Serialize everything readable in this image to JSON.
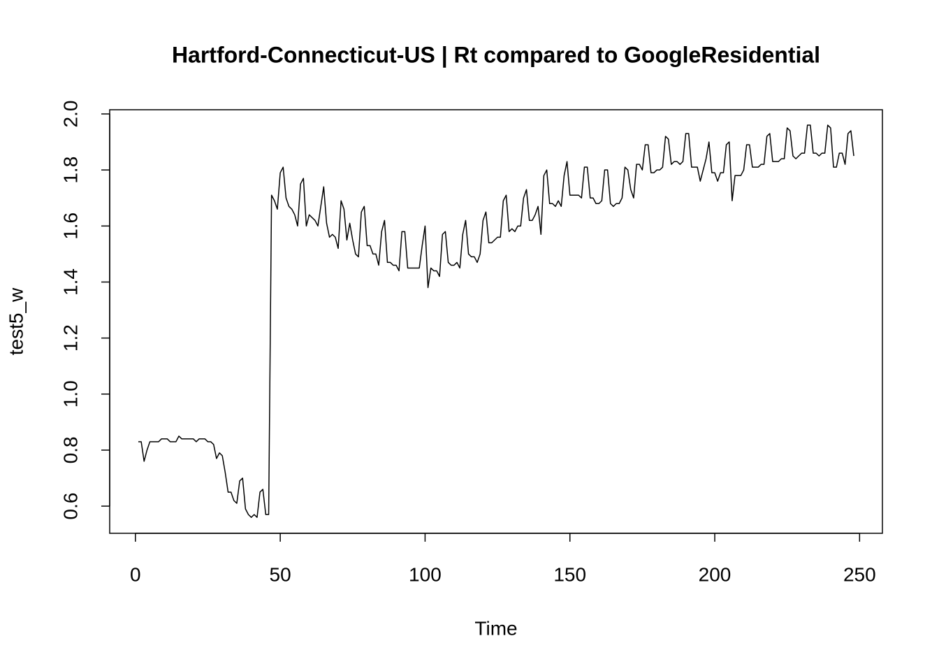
{
  "chart_data": {
    "type": "line",
    "title": "Hartford-Connecticut-US | Rt compared to GoogleResidential",
    "x_label": "Time",
    "y_label": "test5_w",
    "x": [
      1,
      2,
      3,
      4,
      5,
      6,
      7,
      8,
      9,
      10,
      11,
      12,
      13,
      14,
      15,
      16,
      17,
      18,
      19,
      20,
      21,
      22,
      23,
      24,
      25,
      26,
      27,
      28,
      29,
      30,
      31,
      32,
      33,
      34,
      35,
      36,
      37,
      38,
      39,
      40,
      41,
      42,
      43,
      44,
      45,
      46,
      47,
      48,
      49,
      50,
      51,
      52,
      53,
      54,
      55,
      56,
      57,
      58,
      59,
      60,
      61,
      62,
      63,
      64,
      65,
      66,
      67,
      68,
      69,
      70,
      71,
      72,
      73,
      74,
      75,
      76,
      77,
      78,
      79,
      80,
      81,
      82,
      83,
      84,
      85,
      86,
      87,
      88,
      89,
      90,
      91,
      92,
      93,
      94,
      95,
      96,
      97,
      98,
      99,
      100,
      101,
      102,
      103,
      104,
      105,
      106,
      107,
      108,
      109,
      110,
      111,
      112,
      113,
      114,
      115,
      116,
      117,
      118,
      119,
      120,
      121,
      122,
      123,
      124,
      125,
      126,
      127,
      128,
      129,
      130,
      131,
      132,
      133,
      134,
      135,
      136,
      137,
      138,
      139,
      140,
      141,
      142,
      143,
      144,
      145,
      146,
      147,
      148,
      149,
      150,
      151,
      152,
      153,
      154,
      155,
      156,
      157,
      158,
      159,
      160,
      161,
      162,
      163,
      164,
      165,
      166,
      167,
      168,
      169,
      170,
      171,
      172,
      173,
      174,
      175,
      176,
      177,
      178,
      179,
      180,
      181,
      182,
      183,
      184,
      185,
      186,
      187,
      188,
      189,
      190,
      191,
      192,
      193,
      194,
      195,
      196,
      197,
      198,
      199,
      200,
      201,
      202,
      203,
      204,
      205,
      206,
      207,
      208,
      209,
      210,
      211,
      212,
      213,
      214,
      215,
      216,
      217,
      218,
      219,
      220,
      221,
      222,
      223,
      224,
      225,
      226,
      227,
      228,
      229,
      230,
      231,
      232,
      233,
      234,
      235,
      236,
      237,
      238,
      239,
      240,
      241,
      242,
      243,
      244,
      245,
      246,
      247,
      248
    ],
    "values": [
      0.83,
      0.83,
      0.76,
      0.8,
      0.83,
      0.83,
      0.83,
      0.83,
      0.84,
      0.84,
      0.84,
      0.83,
      0.83,
      0.83,
      0.85,
      0.84,
      0.84,
      0.84,
      0.84,
      0.84,
      0.83,
      0.84,
      0.84,
      0.84,
      0.83,
      0.83,
      0.82,
      0.77,
      0.79,
      0.78,
      0.72,
      0.65,
      0.65,
      0.62,
      0.61,
      0.69,
      0.7,
      0.59,
      0.57,
      0.56,
      0.57,
      0.56,
      0.65,
      0.66,
      0.57,
      0.57,
      1.71,
      1.69,
      1.66,
      1.79,
      1.81,
      1.7,
      1.67,
      1.66,
      1.64,
      1.6,
      1.75,
      1.77,
      1.6,
      1.64,
      1.63,
      1.62,
      1.6,
      1.67,
      1.74,
      1.61,
      1.56,
      1.57,
      1.56,
      1.52,
      1.69,
      1.66,
      1.55,
      1.61,
      1.55,
      1.5,
      1.49,
      1.65,
      1.67,
      1.53,
      1.53,
      1.5,
      1.5,
      1.46,
      1.58,
      1.62,
      1.47,
      1.47,
      1.46,
      1.46,
      1.44,
      1.58,
      1.58,
      1.45,
      1.45,
      1.45,
      1.45,
      1.45,
      1.53,
      1.6,
      1.38,
      1.45,
      1.44,
      1.44,
      1.42,
      1.57,
      1.58,
      1.47,
      1.46,
      1.46,
      1.47,
      1.45,
      1.57,
      1.62,
      1.5,
      1.49,
      1.49,
      1.47,
      1.5,
      1.62,
      1.65,
      1.54,
      1.54,
      1.55,
      1.56,
      1.56,
      1.69,
      1.71,
      1.58,
      1.59,
      1.58,
      1.6,
      1.6,
      1.7,
      1.73,
      1.62,
      1.62,
      1.64,
      1.67,
      1.57,
      1.78,
      1.8,
      1.68,
      1.68,
      1.67,
      1.69,
      1.67,
      1.78,
      1.83,
      1.71,
      1.71,
      1.71,
      1.71,
      1.7,
      1.81,
      1.81,
      1.7,
      1.7,
      1.68,
      1.68,
      1.69,
      1.8,
      1.8,
      1.68,
      1.67,
      1.68,
      1.68,
      1.7,
      1.81,
      1.8,
      1.73,
      1.7,
      1.82,
      1.82,
      1.8,
      1.89,
      1.89,
      1.79,
      1.79,
      1.8,
      1.8,
      1.81,
      1.92,
      1.91,
      1.82,
      1.83,
      1.83,
      1.82,
      1.83,
      1.93,
      1.93,
      1.81,
      1.81,
      1.81,
      1.76,
      1.8,
      1.84,
      1.9,
      1.79,
      1.79,
      1.76,
      1.79,
      1.79,
      1.89,
      1.9,
      1.69,
      1.78,
      1.78,
      1.78,
      1.8,
      1.89,
      1.89,
      1.81,
      1.81,
      1.81,
      1.82,
      1.82,
      1.92,
      1.93,
      1.83,
      1.83,
      1.83,
      1.84,
      1.84,
      1.95,
      1.94,
      1.85,
      1.84,
      1.85,
      1.86,
      1.86,
      1.96,
      1.96,
      1.86,
      1.86,
      1.85,
      1.86,
      1.86,
      1.96,
      1.95,
      1.81,
      1.81,
      1.86,
      1.86,
      1.82,
      1.93,
      1.94,
      1.85
    ],
    "color": "#000000",
    "xlim": [
      -8.88,
      257.88
    ],
    "xticks": [
      0,
      50,
      100,
      150,
      200,
      250
    ],
    "ylim": [
      0.503,
      2.015
    ],
    "yticks": [
      0.6,
      0.8,
      {
        "value": 1,
        "label": "1.0"
      },
      1.2,
      1.4,
      1.6,
      1.8,
      {
        "value": 2,
        "label": "2.0"
      }
    ]
  }
}
